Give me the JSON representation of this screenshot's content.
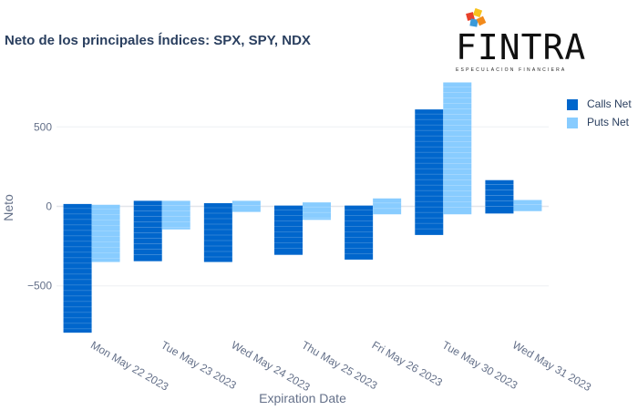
{
  "title": "Neto de los principales Índices: SPX, SPY, NDX",
  "logo": {
    "text": "FINTRA",
    "tagline": "ESPECULACION FINANCIERA",
    "colors": [
      "#e8402a",
      "#f7c21d",
      "#3a9ad9",
      "#f28a1b"
    ]
  },
  "chart_data": {
    "type": "bar",
    "barmode": "relative-stacked",
    "categories": [
      "Mon May 22 2023",
      "Tue May 23 2023",
      "Wed May 24 2023",
      "Thu May 25 2023",
      "Fri May 26 2023",
      "Tue May 30 2023",
      "Wed May 31 2023"
    ],
    "xlabel": "Expiration Date",
    "ylabel": "Neto",
    "ylim": [
      -840,
      840
    ],
    "yticks": [
      -500,
      0,
      500
    ],
    "ytick_labels": [
      "−500",
      "0",
      "500"
    ],
    "grid": true,
    "legend_position": "top-right",
    "series": [
      {
        "name": "Calls Net",
        "color": "#0066cc",
        "net_values": [
          -780,
          -310,
          -330,
          -300,
          -330,
          430,
          120
        ],
        "positive_totals": [
          15,
          35,
          20,
          5,
          5,
          610,
          165
        ],
        "negative_totals": [
          -795,
          -345,
          -350,
          -305,
          -335,
          -180,
          -45
        ]
      },
      {
        "name": "Puts Net",
        "color": "#88ccff",
        "net_values": [
          -340,
          -110,
          0,
          -60,
          0,
          730,
          10
        ],
        "positive_totals": [
          10,
          35,
          35,
          25,
          50,
          780,
          40
        ],
        "negative_totals": [
          -350,
          -145,
          -35,
          -85,
          -50,
          -50,
          -30
        ]
      }
    ]
  }
}
